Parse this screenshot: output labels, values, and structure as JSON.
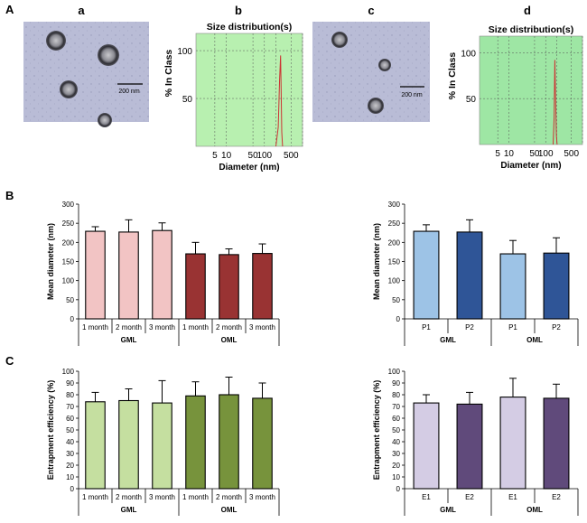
{
  "section_labels": {
    "A": "A",
    "B": "B",
    "C": "C"
  },
  "panel_labels": {
    "a": "a",
    "b": "b",
    "c": "c",
    "d": "d"
  },
  "micrographs": [
    {
      "id": "a",
      "scale_bar": "200 nm"
    },
    {
      "id": "c",
      "scale_bar": "200 nm"
    }
  ],
  "colors": {
    "plot_green": "#b8f0b0",
    "plot_green_dark": "#9ee6a4",
    "micro_bg": "#b9bcd6",
    "curve": "#cc3333",
    "B1_bars": [
      "#f2c4c4",
      "#f2c4c4",
      "#f2c4c4",
      "#993333",
      "#993333",
      "#993333"
    ],
    "B2_bars": [
      "#9dc3e6",
      "#2f5597",
      "#9dc3e6",
      "#2f5597"
    ],
    "C1_bars": [
      "#c5dfa0",
      "#c5dfa0",
      "#c5dfa0",
      "#77933c",
      "#77933c",
      "#77933c"
    ],
    "C2_bars": [
      "#d4cce4",
      "#604a7b",
      "#d4cce4",
      "#604a7b"
    ]
  },
  "chart_data": [
    {
      "id": "b",
      "type": "line",
      "title": "Size distribution(s)",
      "xlabel": "Diameter (nm)",
      "ylabel": "% In Class",
      "xscale": "log",
      "xticks": [
        "5",
        "10",
        "50",
        "100",
        "500"
      ],
      "yticks": [
        "100",
        "50"
      ],
      "ylim": [
        0,
        118
      ],
      "x": [
        200,
        230,
        250,
        265,
        275,
        285,
        300
      ],
      "y": [
        0,
        20,
        70,
        95,
        60,
        15,
        0
      ]
    },
    {
      "id": "d",
      "type": "line",
      "title": "Size distribution(s)",
      "xlabel": "Diameter (nm)",
      "ylabel": "% In Class",
      "xscale": "log",
      "xticks": [
        "5",
        "10",
        "50",
        "100",
        "500"
      ],
      "yticks": [
        "100",
        "50"
      ],
      "ylim": [
        0,
        118
      ],
      "x": [
        160,
        170,
        178,
        185,
        195,
        205
      ],
      "y": [
        0,
        30,
        92,
        55,
        10,
        0
      ]
    },
    {
      "id": "B1",
      "type": "bar",
      "ylabel": "Mean diameter (nm)",
      "ylim": [
        0,
        300
      ],
      "yticks": [
        "0",
        "50",
        "100",
        "150",
        "200",
        "250",
        "300"
      ],
      "categories": [
        "1 month",
        "2 month",
        "3 month",
        "1 month",
        "2 month",
        "3 month"
      ],
      "groups": [
        "GML",
        "OML"
      ],
      "values": [
        229,
        227,
        231,
        170,
        168,
        171
      ],
      "errors": [
        12,
        32,
        20,
        30,
        15,
        25
      ]
    },
    {
      "id": "B2",
      "type": "bar",
      "ylabel": "Mean diameter (nm)",
      "ylim": [
        0,
        300
      ],
      "yticks": [
        "0",
        "50",
        "100",
        "150",
        "200",
        "250",
        "300"
      ],
      "categories": [
        "P1",
        "P2",
        "P1",
        "P2"
      ],
      "groups": [
        "GML",
        "OML"
      ],
      "values": [
        229,
        227,
        170,
        172
      ],
      "errors": [
        17,
        32,
        35,
        40
      ]
    },
    {
      "id": "C1",
      "type": "bar",
      "ylabel": "Entrapment efficiency (%)",
      "ylim": [
        0,
        100
      ],
      "yticks": [
        "0",
        "10",
        "20",
        "30",
        "40",
        "50",
        "60",
        "70",
        "80",
        "90",
        "100"
      ],
      "categories": [
        "1 month",
        "2 month",
        "3 month",
        "1 month",
        "2 month",
        "3 month"
      ],
      "groups": [
        "GML",
        "OML"
      ],
      "values": [
        74,
        75,
        73,
        79,
        80,
        77
      ],
      "errors": [
        8,
        10,
        19,
        12,
        15,
        13
      ]
    },
    {
      "id": "C2",
      "type": "bar",
      "ylabel": "Entrapment efficiency (%)",
      "ylim": [
        0,
        100
      ],
      "yticks": [
        "0",
        "10",
        "20",
        "30",
        "40",
        "50",
        "60",
        "70",
        "80",
        "90",
        "100"
      ],
      "categories": [
        "E1",
        "E2",
        "E1",
        "E2"
      ],
      "groups": [
        "GML",
        "OML"
      ],
      "values": [
        73,
        72,
        78,
        77
      ],
      "errors": [
        7,
        10,
        16,
        12
      ]
    }
  ]
}
